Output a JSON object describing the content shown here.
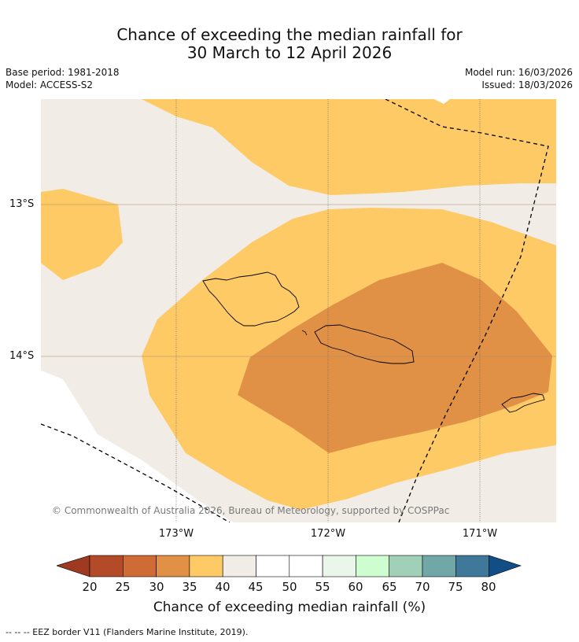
{
  "title": {
    "line1": "Chance of exceeding the median rainfall for",
    "line2": "30 March to 12 April 2026"
  },
  "meta": {
    "base_period": "Base period: 1981-2018",
    "model": "Model: ACCESS-S2",
    "model_run": "Model run: 16/03/2026",
    "issued": "Issued: 18/03/2026"
  },
  "axes": {
    "lat_labels": [
      "13°S",
      "14°S"
    ],
    "lon_labels": [
      "173°W",
      "172°W",
      "171°W"
    ]
  },
  "copyright": "© Commonwealth of Australia 2026, Bureau of Meteorology, supported by COSPPac",
  "colorbar": {
    "ticks": [
      "20",
      "25",
      "30",
      "35",
      "40",
      "45",
      "50",
      "55",
      "60",
      "65",
      "70",
      "75",
      "80"
    ],
    "label": "Chance of exceeding median rainfall (%)",
    "colors": [
      "#9e3a22",
      "#b34b29",
      "#cf6b35",
      "#e09146",
      "#fdca66",
      "#f1ece6",
      "#ffffff",
      "#ffffff",
      "#eaf6ea",
      "#cefdcf",
      "#a0d1b8",
      "#72a7a8",
      "#40789a",
      "#124e86"
    ]
  },
  "colors": {
    "band_35_40": "#fdca66",
    "band_30_35": "#e09146",
    "band_40_45": "#f1ece6",
    "band_45_50": "#ffffff"
  },
  "footer": "--  --  -- EEZ border V11 (Flanders Marine Institute, 2019)."
}
